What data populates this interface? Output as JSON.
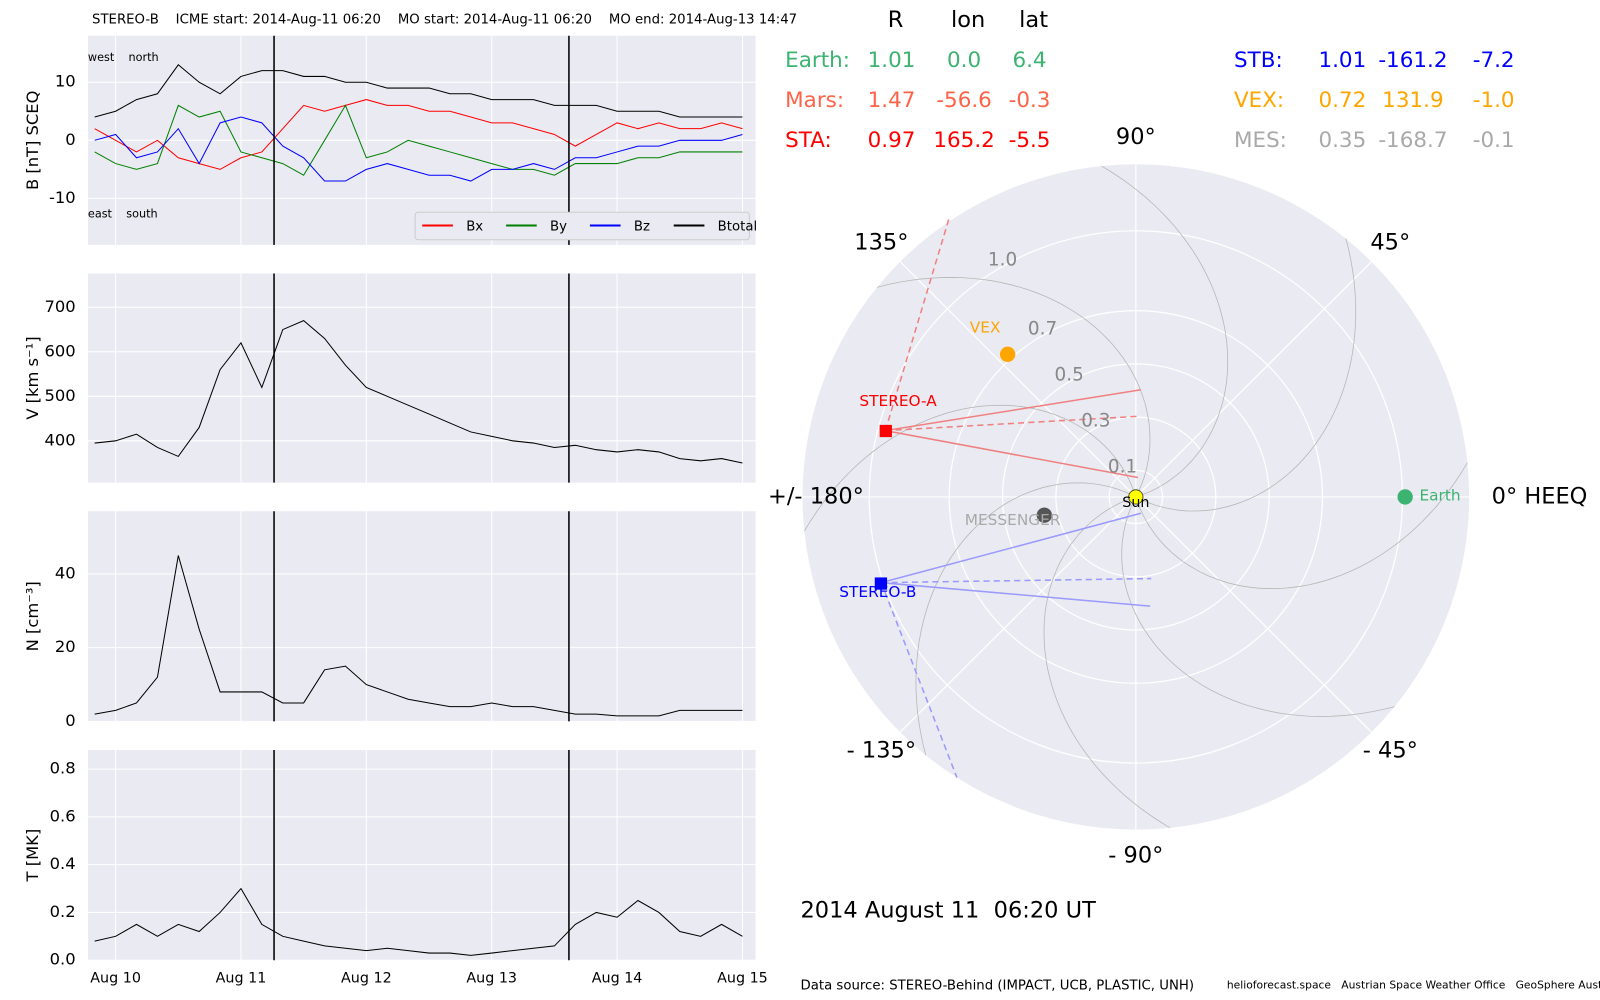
{
  "chart_data": [
    {
      "type": "line",
      "title": "STEREO-B    ICME start: 2014-Aug-11 06:20    MO start: 2014-Aug-11 06:20    MO end: 2014-Aug-13 14:47",
      "ylabel": "B [nT] SCEQ",
      "annotations": [
        "west    north",
        "east    south"
      ],
      "legend": "lower right",
      "grid": true,
      "event_lines": [
        30.33,
        86.78
      ],
      "x": [
        -4,
        0,
        4,
        8,
        12,
        16,
        20,
        24,
        28,
        32,
        36,
        40,
        44,
        48,
        52,
        56,
        60,
        64,
        68,
        72,
        76,
        80,
        84,
        88,
        92,
        96,
        100,
        104,
        108,
        112,
        116,
        120
      ],
      "xlim": [
        -5.3,
        122.5
      ],
      "ylim": [
        -18,
        18
      ],
      "yticks": [
        -10,
        0,
        10
      ],
      "series": [
        {
          "name": "Bx",
          "color": "red",
          "values": [
            2,
            0,
            -2,
            0,
            -3,
            -4,
            -5,
            -3,
            -2,
            2,
            6,
            5,
            6,
            7,
            6,
            6,
            5,
            5,
            4,
            3,
            3,
            2,
            1,
            -1,
            1,
            3,
            2,
            3,
            2,
            2,
            3,
            2
          ]
        },
        {
          "name": "By",
          "color": "green",
          "values": [
            -2,
            -4,
            -5,
            -4,
            6,
            4,
            5,
            -2,
            -3,
            -4,
            -6,
            0,
            6,
            -3,
            -2,
            0,
            -1,
            -2,
            -3,
            -4,
            -5,
            -5,
            -6,
            -4,
            -4,
            -4,
            -3,
            -3,
            -2,
            -2,
            -2,
            -2
          ]
        },
        {
          "name": "Bz",
          "color": "blue",
          "values": [
            0,
            1,
            -3,
            -2,
            2,
            -4,
            3,
            4,
            3,
            -1,
            -3,
            -7,
            -7,
            -5,
            -4,
            -5,
            -6,
            -6,
            -7,
            -5,
            -5,
            -4,
            -5,
            -3,
            -3,
            -2,
            -1,
            -1,
            0,
            0,
            0,
            1
          ]
        },
        {
          "name": "Btotal",
          "color": "black",
          "values": [
            4,
            5,
            7,
            8,
            13,
            10,
            8,
            11,
            12,
            12,
            11,
            11,
            10,
            10,
            9,
            9,
            9,
            8,
            8,
            7,
            7,
            7,
            6,
            6,
            6,
            5,
            5,
            5,
            4,
            4,
            4,
            4
          ]
        }
      ]
    },
    {
      "type": "line",
      "ylabel": "V [km s⁻¹]",
      "grid": true,
      "color": "black",
      "x": [
        -4,
        0,
        4,
        8,
        12,
        16,
        20,
        24,
        28,
        32,
        36,
        40,
        44,
        48,
        52,
        56,
        60,
        64,
        68,
        72,
        76,
        80,
        84,
        88,
        92,
        96,
        100,
        104,
        108,
        112,
        116,
        120
      ],
      "xlim": [
        -5.3,
        122.5
      ],
      "ylim": [
        306,
        776
      ],
      "yticks": [
        400,
        500,
        600,
        700
      ],
      "values": [
        395,
        400,
        415,
        385,
        365,
        430,
        560,
        620,
        520,
        650,
        670,
        630,
        570,
        520,
        500,
        480,
        460,
        440,
        420,
        410,
        400,
        395,
        385,
        390,
        380,
        375,
        380,
        375,
        360,
        355,
        360,
        350
      ]
    },
    {
      "type": "line",
      "ylabel": "N [cm⁻³]",
      "grid": true,
      "color": "black",
      "x": [
        -4,
        0,
        4,
        8,
        12,
        16,
        20,
        24,
        28,
        32,
        36,
        40,
        44,
        48,
        52,
        56,
        60,
        64,
        68,
        72,
        76,
        80,
        84,
        88,
        92,
        96,
        100,
        104,
        108,
        112,
        116,
        120
      ],
      "xlim": [
        -5.3,
        122.5
      ],
      "ylim": [
        0,
        57
      ],
      "yticks": [
        0,
        20,
        40
      ],
      "values": [
        2,
        3,
        5,
        12,
        45,
        25,
        8,
        8,
        8,
        5,
        5,
        14,
        15,
        10,
        8,
        6,
        5,
        4,
        4,
        5,
        4,
        4,
        3,
        2,
        2,
        1.5,
        1.5,
        1.5,
        3,
        3,
        3,
        3
      ]
    },
    {
      "type": "line",
      "ylabel": "T [MK]",
      "grid": true,
      "color": "black",
      "x": [
        -4,
        0,
        4,
        8,
        12,
        16,
        20,
        24,
        28,
        32,
        36,
        40,
        44,
        48,
        52,
        56,
        60,
        64,
        68,
        72,
        76,
        80,
        84,
        88,
        92,
        96,
        100,
        104,
        108,
        112,
        116,
        120
      ],
      "xlim": [
        -5.3,
        122.5
      ],
      "ylim": [
        0,
        0.88
      ],
      "yticks": [
        {
          "value": 0,
          "label": "0.0"
        },
        0.2,
        0.4,
        0.6,
        0.8
      ],
      "xticks": [
        {
          "value": 0,
          "label": "Aug 10"
        },
        {
          "value": 24,
          "label": "Aug 11"
        },
        {
          "value": 48,
          "label": "Aug 12"
        },
        {
          "value": 72,
          "label": "Aug 13"
        },
        {
          "value": 96,
          "label": "Aug 14"
        },
        {
          "value": 120,
          "label": "Aug 15"
        }
      ],
      "values": [
        0.08,
        0.1,
        0.15,
        0.1,
        0.15,
        0.12,
        0.2,
        0.3,
        0.15,
        0.1,
        0.08,
        0.06,
        0.05,
        0.04,
        0.05,
        0.04,
        0.03,
        0.03,
        0.02,
        0.03,
        0.04,
        0.05,
        0.06,
        0.15,
        0.2,
        0.18,
        0.25,
        0.2,
        0.12,
        0.1,
        0.15,
        0.1
      ]
    },
    {
      "type": "polar",
      "rlim": [
        0,
        1.25
      ],
      "rticks": [
        0.1,
        0.3,
        0.5,
        0.7,
        {
          "value": 1,
          "label": "1.0"
        }
      ],
      "thetaticks": [
        {
          "value": 90,
          "label": "90°"
        },
        {
          "value": 45,
          "label": "45°"
        },
        {
          "value": 0,
          "label": "0° HEEQ"
        },
        {
          "value": -45,
          "label": "- 45°"
        },
        {
          "value": -90,
          "label": "- 90°"
        },
        {
          "value": -135,
          "label": "- 135°"
        },
        {
          "value": 180,
          "label": "+/- 180°"
        },
        {
          "value": 135,
          "label": "135°"
        }
      ],
      "sun": {
        "label": "Sun",
        "color": "yellow"
      }
    }
  ],
  "positions": {
    "columns": [
      "R",
      "lon",
      "lat"
    ],
    "rows": [
      {
        "name": "Earth:",
        "R": 1.01,
        "lon": {
          "value": 0,
          "label": "0.0"
        },
        "lat": 6.4,
        "color": "mediumseagreen",
        "marker": "circle",
        "label": "Earth"
      },
      {
        "name": "Mars:",
        "R": 1.47,
        "lon": -56.6,
        "lat": -0.3,
        "color": "tomato"
      },
      {
        "name": "STA:",
        "R": 0.97,
        "lon": 165.2,
        "lat": -5.5,
        "color": "red",
        "marker": "square",
        "label": "STEREO-A"
      },
      {
        "name": "STB:",
        "R": 1.01,
        "lon": -161.2,
        "lat": -7.2,
        "color": "blue",
        "marker": "square",
        "label": "STEREO-B"
      },
      {
        "name": "VEX:",
        "R": 0.72,
        "lon": 131.9,
        "lat": {
          "value": -1,
          "label": "-1.0"
        },
        "color": "orange",
        "marker": "circle",
        "label": "VEX"
      },
      {
        "name": "MES:",
        "R": 0.35,
        "lon": -168.7,
        "lat": -0.1,
        "color": "darkgrey",
        "marker": "circle",
        "marker_color": "#555555",
        "label": "MESSENGER"
      }
    ]
  },
  "timestamp": "2014 August 11  06:20 UT",
  "footer": {
    "source": "Data source: STEREO-Behind (IMPACT, UCB, PLASTIC, UNH)",
    "credits": "helioforecast.space   Austrian Space Weather Office   GeoSphere Austria"
  }
}
